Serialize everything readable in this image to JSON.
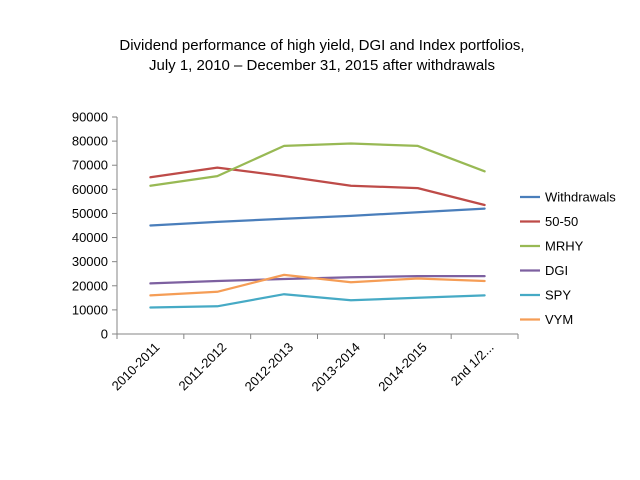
{
  "chart_data": {
    "type": "line",
    "title": [
      "Dividend performance of high yield, DGI and Index portfolios,",
      "July 1, 2010 – December 31, 2015 after withdrawals"
    ],
    "xlabel": "",
    "ylabel": "",
    "categories": [
      "2010-2011",
      "2011-2012",
      "2012-2013",
      "2013-2014",
      "2014-2015",
      "2nd 1/2..."
    ],
    "ylim": [
      0,
      90000
    ],
    "yticks": [
      0,
      10000,
      20000,
      30000,
      40000,
      50000,
      60000,
      70000,
      80000,
      90000
    ],
    "grid": false,
    "legend_position": "right",
    "series": [
      {
        "name": "Withdrawals",
        "color": "#4A7EBB",
        "values": [
          45000,
          46500,
          47800,
          49000,
          50500,
          52000
        ]
      },
      {
        "name": "50-50",
        "color": "#BE4B48",
        "values": [
          65000,
          69000,
          65500,
          61500,
          60500,
          53500
        ]
      },
      {
        "name": "MRHY",
        "color": "#98B954",
        "values": [
          61500,
          65500,
          78000,
          79000,
          78000,
          67500
        ]
      },
      {
        "name": "DGI",
        "color": "#7D60A0",
        "values": [
          21000,
          22000,
          22800,
          23500,
          24000,
          24000
        ]
      },
      {
        "name": "SPY",
        "color": "#46AAC5",
        "values": [
          11000,
          11500,
          16500,
          14000,
          15000,
          16000
        ]
      },
      {
        "name": "VYM",
        "color": "#F59D56",
        "values": [
          16000,
          17500,
          24500,
          21500,
          23000,
          22000
        ]
      }
    ]
  }
}
